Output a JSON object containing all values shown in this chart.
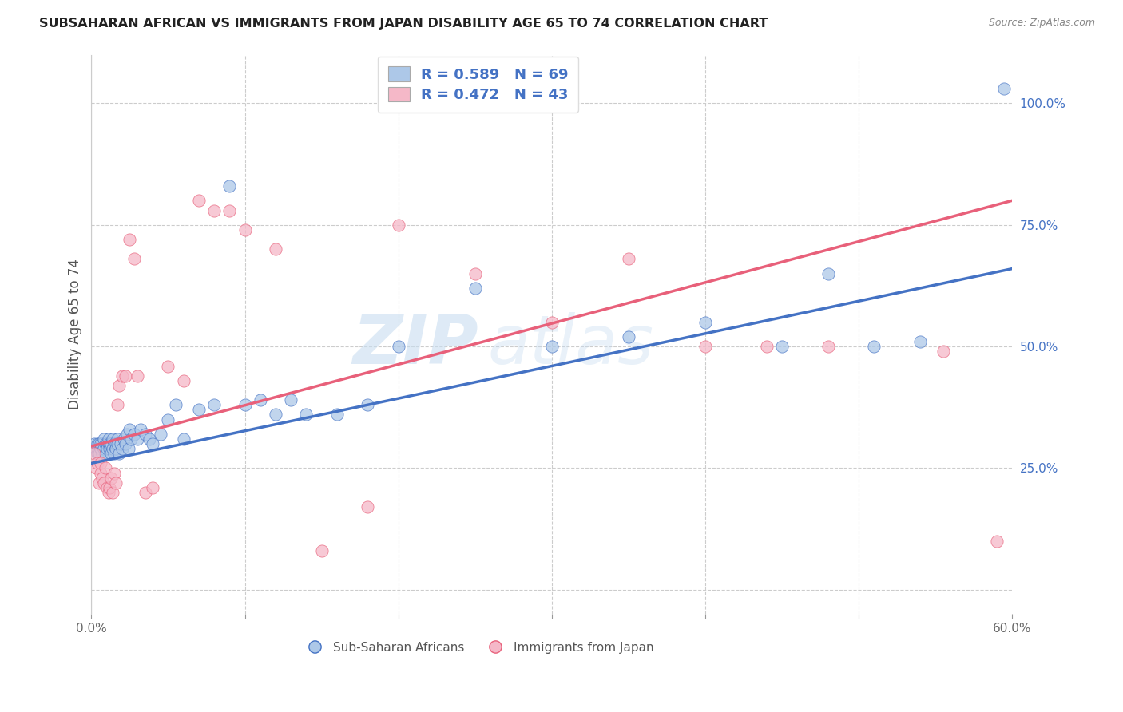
{
  "title": "SUBSAHARAN AFRICAN VS IMMIGRANTS FROM JAPAN DISABILITY AGE 65 TO 74 CORRELATION CHART",
  "source": "Source: ZipAtlas.com",
  "ylabel": "Disability Age 65 to 74",
  "legend_label1": "Sub-Saharan Africans",
  "legend_label2": "Immigrants from Japan",
  "r1": 0.589,
  "n1": 69,
  "r2": 0.472,
  "n2": 43,
  "color1": "#adc8e8",
  "color2": "#f5b8c8",
  "line_color1": "#4472c4",
  "line_color2": "#e8607a",
  "legend_text_color": "#4472c4",
  "background_color": "#ffffff",
  "watermark_zip": "ZIP",
  "watermark_atlas": "atlas",
  "xlim": [
    0.0,
    0.6
  ],
  "ylim": [
    -0.05,
    1.1
  ],
  "ytick_vals": [
    0.0,
    0.25,
    0.5,
    0.75,
    1.0
  ],
  "ytick_labels": [
    "",
    "25.0%",
    "50.0%",
    "75.0%",
    "100.0%"
  ],
  "blue_scatter_x": [
    0.002,
    0.003,
    0.004,
    0.004,
    0.005,
    0.005,
    0.006,
    0.006,
    0.007,
    0.007,
    0.008,
    0.008,
    0.009,
    0.009,
    0.01,
    0.01,
    0.011,
    0.011,
    0.012,
    0.012,
    0.013,
    0.013,
    0.014,
    0.014,
    0.015,
    0.015,
    0.016,
    0.016,
    0.017,
    0.017,
    0.018,
    0.019,
    0.02,
    0.021,
    0.022,
    0.023,
    0.024,
    0.025,
    0.026,
    0.028,
    0.03,
    0.032,
    0.035,
    0.038,
    0.04,
    0.045,
    0.05,
    0.055,
    0.06,
    0.07,
    0.08,
    0.09,
    0.1,
    0.11,
    0.12,
    0.13,
    0.14,
    0.16,
    0.18,
    0.2,
    0.25,
    0.3,
    0.35,
    0.4,
    0.45,
    0.48,
    0.51,
    0.54,
    0.595
  ],
  "blue_scatter_y": [
    0.3,
    0.29,
    0.28,
    0.3,
    0.28,
    0.3,
    0.29,
    0.3,
    0.28,
    0.3,
    0.29,
    0.31,
    0.3,
    0.28,
    0.3,
    0.29,
    0.3,
    0.31,
    0.29,
    0.3,
    0.28,
    0.3,
    0.29,
    0.31,
    0.3,
    0.28,
    0.3,
    0.29,
    0.31,
    0.3,
    0.28,
    0.3,
    0.29,
    0.31,
    0.3,
    0.32,
    0.29,
    0.33,
    0.31,
    0.32,
    0.31,
    0.33,
    0.32,
    0.31,
    0.3,
    0.32,
    0.35,
    0.38,
    0.31,
    0.37,
    0.38,
    0.83,
    0.38,
    0.39,
    0.36,
    0.39,
    0.36,
    0.36,
    0.38,
    0.5,
    0.62,
    0.5,
    0.52,
    0.55,
    0.5,
    0.65,
    0.5,
    0.51,
    1.03
  ],
  "pink_scatter_x": [
    0.002,
    0.003,
    0.004,
    0.005,
    0.006,
    0.006,
    0.007,
    0.008,
    0.009,
    0.01,
    0.011,
    0.012,
    0.013,
    0.014,
    0.015,
    0.016,
    0.017,
    0.018,
    0.02,
    0.022,
    0.025,
    0.028,
    0.03,
    0.035,
    0.04,
    0.05,
    0.06,
    0.07,
    0.08,
    0.09,
    0.1,
    0.12,
    0.15,
    0.18,
    0.2,
    0.25,
    0.3,
    0.35,
    0.4,
    0.44,
    0.48,
    0.555,
    0.59
  ],
  "pink_scatter_y": [
    0.28,
    0.25,
    0.26,
    0.22,
    0.24,
    0.26,
    0.23,
    0.22,
    0.25,
    0.21,
    0.2,
    0.21,
    0.23,
    0.2,
    0.24,
    0.22,
    0.38,
    0.42,
    0.44,
    0.44,
    0.72,
    0.68,
    0.44,
    0.2,
    0.21,
    0.46,
    0.43,
    0.8,
    0.78,
    0.78,
    0.74,
    0.7,
    0.08,
    0.17,
    0.75,
    0.65,
    0.55,
    0.68,
    0.5,
    0.5,
    0.5,
    0.49,
    0.1
  ],
  "blue_line_x0": 0.0,
  "blue_line_y0": 0.26,
  "blue_line_x1": 0.6,
  "blue_line_y1": 0.66,
  "pink_line_x0": 0.0,
  "pink_line_y0": 0.295,
  "pink_line_x1": 0.6,
  "pink_line_y1": 0.8
}
